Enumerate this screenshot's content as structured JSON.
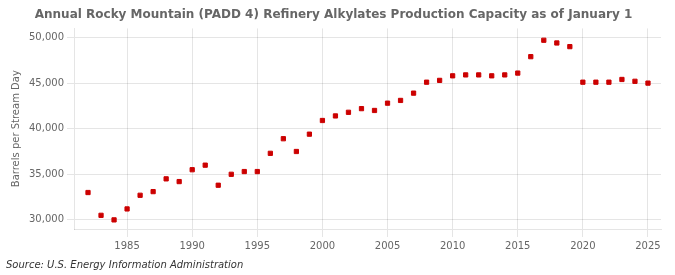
{
  "chart_data": {
    "type": "scatter",
    "title": "Annual Rocky Mountain (PADD 4) Refinery Alkylates Production Capacity as of January 1",
    "ylabel": "Barrels per Stream Day",
    "annotation": "Source: U.S. Energy Information Administration",
    "x": [
      1982,
      1983,
      1984,
      1985,
      1986,
      1987,
      1988,
      1989,
      1990,
      1991,
      1992,
      1993,
      1994,
      1995,
      1996,
      1997,
      1998,
      1999,
      2000,
      2001,
      2002,
      2003,
      2004,
      2005,
      2006,
      2007,
      2008,
      2009,
      2010,
      2011,
      2012,
      2013,
      2014,
      2015,
      2016,
      2017,
      2018,
      2019,
      2020,
      2021,
      2022,
      2023,
      2024,
      2025
    ],
    "values": [
      33000,
      30500,
      30000,
      31200,
      32700,
      33100,
      34500,
      34200,
      35500,
      36000,
      33800,
      35000,
      35300,
      35300,
      37300,
      38900,
      37500,
      39400,
      40900,
      41400,
      41800,
      42200,
      42000,
      42800,
      43100,
      43900,
      45100,
      45300,
      45800,
      45900,
      45900,
      45800,
      45900,
      46100,
      47900,
      49700,
      49400,
      49000,
      45100,
      45100,
      45100,
      45400,
      45200,
      45000
    ],
    "color": "#cc0000",
    "marker": "square",
    "xlim": [
      1981,
      2026
    ],
    "xticks": [
      1985,
      1990,
      1995,
      2000,
      2005,
      2010,
      2015,
      2020,
      2025
    ],
    "ylim": [
      29000,
      51000
    ],
    "yticks": [
      {
        "value": 30000,
        "label": "30,000"
      },
      {
        "value": 35000,
        "label": "35,000"
      },
      {
        "value": 40000,
        "label": "40,000"
      },
      {
        "value": 45000,
        "label": "45,000"
      },
      {
        "value": 50000,
        "label": "50,000"
      }
    ],
    "grid": true
  }
}
